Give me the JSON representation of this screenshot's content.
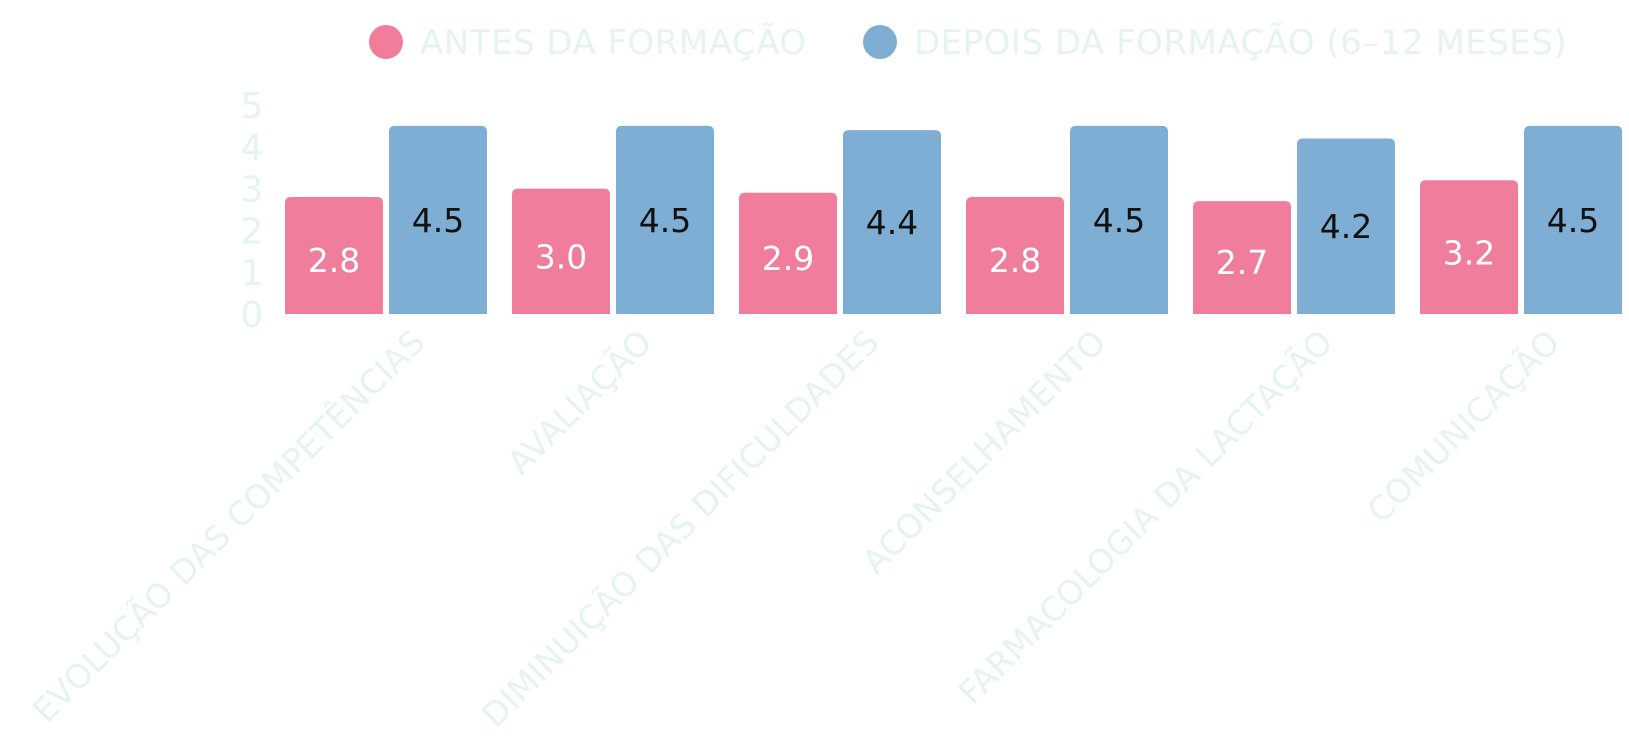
{
  "chart_data": {
    "type": "bar",
    "title": "",
    "xlabel": "",
    "ylabel": "",
    "ylim": [
      0,
      5
    ],
    "yticks": [
      0,
      1,
      2,
      3,
      4,
      5
    ],
    "grid": false,
    "legend_position": "top",
    "categories": [
      "EVOLUÇÃO DAS COMPETÊNCIAS",
      "AVALIAÇÃO",
      "DIMINUIÇÃO DAS DIFICULDADES",
      "ACONSELHAMENTO",
      "FARMACOLOGIA DA LACTAÇÃO",
      "COMUNICAÇÃO"
    ],
    "series": [
      {
        "name": "ANTES DA FORMAÇÃO",
        "color": "#f07d9c",
        "label_color": "#ffffff",
        "values": [
          2.8,
          3.0,
          2.9,
          2.8,
          2.7,
          3.2
        ],
        "labels": [
          "2.8",
          "3.0",
          "2.9",
          "2.8",
          "2.7",
          "3.2"
        ]
      },
      {
        "name": "DEPOIS DA FORMAÇÃO (6–12 MESES)",
        "color": "#7eaed4",
        "label_color": "#111111",
        "values": [
          4.5,
          4.5,
          4.4,
          4.5,
          4.2,
          4.5
        ],
        "labels": [
          "4.5",
          "4.5",
          "4.4",
          "4.5",
          "4.2",
          "4.5"
        ]
      }
    ],
    "text_color": "#e6f4f1"
  }
}
